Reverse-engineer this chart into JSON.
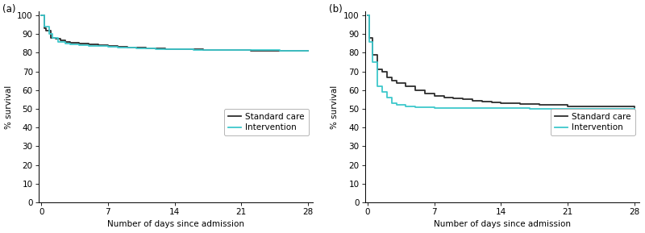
{
  "panel_a": {
    "label": "(a)",
    "std_care": {
      "times": [
        0,
        0.3,
        0.5,
        1,
        1.5,
        2,
        2.5,
        3,
        4,
        5,
        6,
        7,
        8,
        9,
        10,
        11,
        12,
        13,
        14,
        15,
        16,
        17,
        18,
        19,
        20,
        21,
        22,
        23,
        24,
        25,
        26,
        27,
        28
      ],
      "surv": [
        100,
        93,
        92,
        88,
        87.5,
        86.5,
        86,
        85.5,
        85,
        84.5,
        84,
        83.5,
        83.2,
        83,
        82.8,
        82.5,
        82.3,
        82.1,
        82.0,
        81.9,
        81.8,
        81.7,
        81.6,
        81.5,
        81.4,
        81.3,
        81.2,
        81.2,
        81.2,
        81.1,
        81.1,
        81.1,
        81.1
      ]
    },
    "intervention": {
      "times": [
        0,
        0.3,
        0.8,
        1.2,
        1.8,
        2.5,
        3,
        4,
        5,
        6,
        7,
        8,
        9,
        10,
        11,
        12,
        13,
        14,
        15,
        16,
        17,
        18,
        19,
        20,
        21,
        22,
        23,
        24,
        25,
        26,
        27,
        28
      ],
      "surv": [
        100,
        94,
        90,
        88,
        86,
        85,
        84.5,
        84,
        83.8,
        83.5,
        83.2,
        83,
        82.8,
        82.5,
        82.3,
        82.1,
        82.0,
        81.9,
        81.8,
        81.7,
        81.6,
        81.5,
        81.5,
        81.4,
        81.4,
        81.3,
        81.3,
        81.3,
        81.2,
        81.2,
        81.2,
        81.2
      ]
    },
    "xlim": [
      -0.3,
      28.5
    ],
    "ylim": [
      0,
      102
    ],
    "yticks": [
      0,
      10,
      20,
      30,
      40,
      50,
      60,
      70,
      80,
      90,
      100
    ],
    "xticks": [
      0,
      7,
      14,
      21,
      28
    ],
    "xlabel": "Number of days since admission",
    "ylabel": "% survival"
  },
  "panel_b": {
    "label": "(b)",
    "std_care": {
      "times": [
        0,
        0.2,
        0.5,
        1,
        1.5,
        2,
        2.5,
        3,
        4,
        5,
        6,
        7,
        8,
        9,
        10,
        11,
        12,
        13,
        14,
        16,
        18,
        21,
        24,
        28
      ],
      "surv": [
        100,
        88,
        79,
        71,
        70,
        67,
        65,
        64,
        62,
        60,
        58,
        57,
        56,
        55.5,
        55,
        54.5,
        54,
        53.5,
        53,
        52.5,
        52,
        51.5,
        51.2,
        51
      ]
    },
    "intervention": {
      "times": [
        0,
        0.2,
        0.5,
        1,
        1.5,
        2,
        2.5,
        3,
        4,
        5,
        6,
        7,
        8,
        10,
        12,
        14,
        17,
        21,
        25,
        28
      ],
      "surv": [
        100,
        86,
        75,
        62,
        59,
        56,
        53,
        52,
        51.5,
        51,
        50.8,
        50.6,
        50.5,
        50.4,
        50.3,
        50.3,
        50.2,
        50.2,
        50.1,
        50.1
      ]
    },
    "xlim": [
      -0.3,
      28.5
    ],
    "ylim": [
      0,
      102
    ],
    "yticks": [
      0,
      10,
      20,
      30,
      40,
      50,
      60,
      70,
      80,
      90,
      100
    ],
    "xticks": [
      0,
      7,
      14,
      21,
      28
    ],
    "xlabel": "Number of days since admission",
    "ylabel": "% survival"
  },
  "std_care_color": "#2d2d2d",
  "intervention_color": "#3ec8cc",
  "std_care_label": "Standard care",
  "intervention_label": "Intervention",
  "line_width": 1.3,
  "bg_color": "#ffffff",
  "font_size": 7.5,
  "label_font_size": 8.5
}
